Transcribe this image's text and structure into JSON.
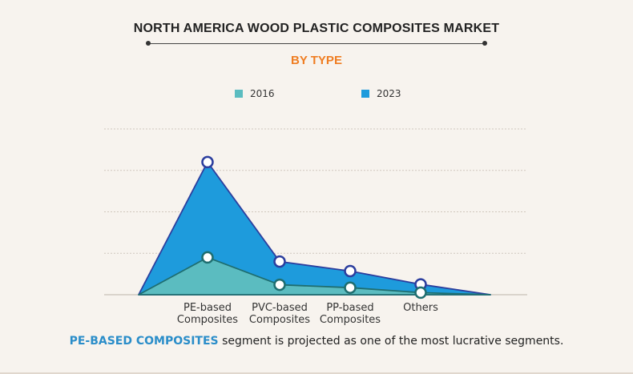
{
  "header": {
    "title": "NORTH AMERICA WOOD PLASTIC COMPOSITES MARKET",
    "subtitle": "BY TYPE"
  },
  "caption": {
    "highlight": "PE-BASED COMPOSITES",
    "rest": " segment is projected as one of the most lucrative segments."
  },
  "colors": {
    "s2016_fill": "#5bbcc0",
    "s2016_line": "#1f6e70",
    "s2023_fill": "#1e9bdc",
    "s2023_line": "#2c3e9e",
    "accent": "#ef7d22"
  },
  "chart_data": {
    "type": "area",
    "categories": [
      "PE-based Composites",
      "PVC-based Composites",
      "PP-based Composites",
      "Others"
    ],
    "tick_labels": [
      [
        "PE-based",
        "Composites"
      ],
      [
        "PVC-based",
        "Composites"
      ],
      [
        "PP-based",
        "Composites"
      ],
      [
        "Others"
      ]
    ],
    "series": [
      {
        "name": "2016",
        "values": [
          0.9,
          0.24,
          0.17,
          0.05
        ]
      },
      {
        "name": "2023",
        "values": [
          3.2,
          0.8,
          0.57,
          0.25
        ]
      }
    ],
    "ylim": [
      0,
      4
    ],
    "grid": true,
    "legend": "top-center",
    "xlabel": "",
    "ylabel": ""
  }
}
